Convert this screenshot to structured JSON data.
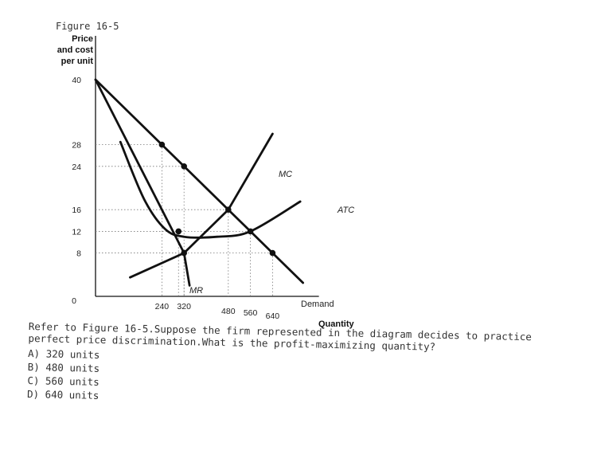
{
  "figure_label": "Figure 16-5",
  "question": {
    "text": "Refer to Figure 16-5.Suppose the firm represented in the diagram decides to practice perfect price discrimination.What is the profit-maximizing quantity?",
    "options": [
      "A) 320 units",
      "B) 480 units",
      "C) 560 units",
      "D) 640 units"
    ]
  },
  "chart_data": {
    "type": "line",
    "title": "",
    "ylabel_lines": [
      "Price",
      "and cost",
      "per unit"
    ],
    "xlabel": "Quantity",
    "y_ticks": [
      0,
      8,
      12,
      16,
      24,
      28,
      40
    ],
    "x_ticks": [
      240,
      320,
      480,
      560,
      640
    ],
    "xlim": [
      0,
      750
    ],
    "ylim": [
      0,
      40
    ],
    "grid": false,
    "series": [
      {
        "name": "Demand",
        "points": [
          [
            0,
            40
          ],
          [
            240,
            28
          ],
          [
            320,
            24
          ],
          [
            480,
            16
          ],
          [
            560,
            12
          ],
          [
            640,
            8
          ],
          [
            750,
            2.5
          ]
        ]
      },
      {
        "name": "MR",
        "points": [
          [
            0,
            40
          ],
          [
            240,
            16
          ],
          [
            320,
            8
          ],
          [
            340,
            2
          ]
        ]
      },
      {
        "name": "MC",
        "points": [
          [
            125,
            3.5
          ],
          [
            320,
            8
          ],
          [
            480,
            16
          ],
          [
            640,
            30
          ]
        ]
      },
      {
        "name": "ATC",
        "points": [
          [
            90,
            28.5
          ],
          [
            175,
            18
          ],
          [
            250,
            12.5
          ],
          [
            320,
            11
          ],
          [
            440,
            11
          ],
          [
            560,
            12
          ],
          [
            740,
            17.5
          ]
        ]
      }
    ],
    "dotted_guides": [
      {
        "x": 240,
        "y": 28
      },
      {
        "x": 320,
        "y": 24
      },
      {
        "x": 480,
        "y": 16
      },
      {
        "x": 560,
        "y": 12
      },
      {
        "x": 640,
        "y": 8
      },
      {
        "x": 320,
        "y": 8
      },
      {
        "x": 300,
        "y": 12
      }
    ],
    "points": [
      {
        "x": 240,
        "y": 28
      },
      {
        "x": 320,
        "y": 24
      },
      {
        "x": 480,
        "y": 16
      },
      {
        "x": 560,
        "y": 12
      },
      {
        "x": 640,
        "y": 8
      },
      {
        "x": 320,
        "y": 8
      },
      {
        "x": 300,
        "y": 12
      }
    ],
    "annotations": [
      {
        "text": "MC",
        "series": "MC"
      },
      {
        "text": "ATC",
        "series": "ATC"
      },
      {
        "text": "MR",
        "series": "MR"
      },
      {
        "text": "Demand",
        "series": "Demand"
      }
    ]
  }
}
